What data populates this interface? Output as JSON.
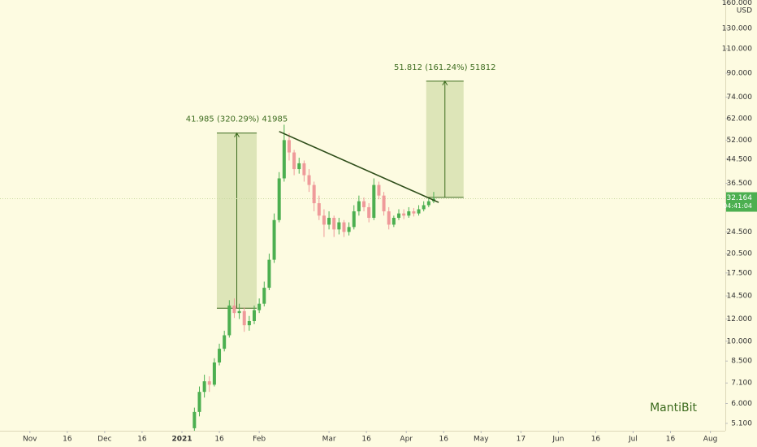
{
  "chart_data": {
    "type": "candlestick",
    "currency": "USD",
    "watermark": "MantiBit",
    "log_scale": true,
    "up_color": "#4caf50",
    "down_color": "#ef9a9a",
    "xlim": [
      "2020-10-20",
      "2021-08-07"
    ],
    "ylim": [
      4.8,
      164
    ],
    "xticks": [
      {
        "value": "2020-11-01",
        "label": "Nov"
      },
      {
        "value": "2020-11-16",
        "label": "16"
      },
      {
        "value": "2020-12-01",
        "label": "Dec"
      },
      {
        "value": "2020-12-16",
        "label": "16"
      },
      {
        "value": "2021-01-01",
        "label": "2021"
      },
      {
        "value": "2021-01-16",
        "label": "16"
      },
      {
        "value": "2021-02-01",
        "label": "Feb"
      },
      {
        "value": "2021-03-01",
        "label": "Mar"
      },
      {
        "value": "2021-03-16",
        "label": "16"
      },
      {
        "value": "2021-04-01",
        "label": "Apr"
      },
      {
        "value": "2021-04-16",
        "label": "16"
      },
      {
        "value": "2021-05-01",
        "label": "May"
      },
      {
        "value": "2021-05-17",
        "label": "17"
      },
      {
        "value": "2021-06-01",
        "label": "Jun"
      },
      {
        "value": "2021-06-16",
        "label": "16"
      },
      {
        "value": "2021-07-01",
        "label": "Jul"
      },
      {
        "value": "2021-07-16",
        "label": "16"
      },
      {
        "value": "2021-08-01",
        "label": "Aug"
      }
    ],
    "yticks": [
      {
        "value": 160,
        "label": "160.000"
      },
      {
        "value": 130,
        "label": "130.000"
      },
      {
        "value": 110,
        "label": "110.000"
      },
      {
        "value": 90,
        "label": "90.000"
      },
      {
        "value": 74,
        "label": "74.000"
      },
      {
        "value": 62,
        "label": "62.000"
      },
      {
        "value": 52,
        "label": "52.000"
      },
      {
        "value": 44.5,
        "label": "44.500"
      },
      {
        "value": 36.5,
        "label": "36.500"
      },
      {
        "value": 24.5,
        "label": "24.500"
      },
      {
        "value": 20.5,
        "label": "20.500"
      },
      {
        "value": 17.5,
        "label": "17.500"
      },
      {
        "value": 14.5,
        "label": "14.500"
      },
      {
        "value": 12,
        "label": "12.000"
      },
      {
        "value": 10,
        "label": "10.000"
      },
      {
        "value": 8.5,
        "label": "8.500"
      },
      {
        "value": 7.1,
        "label": "7.100"
      },
      {
        "value": 6,
        "label": "6.000"
      },
      {
        "value": 5.1,
        "label": "5.100"
      }
    ],
    "last_price": {
      "value": 32.164,
      "label": "32.164"
    },
    "countdown": "04:41:04",
    "x": [
      "2021-01-06",
      "2021-01-08",
      "2021-01-10",
      "2021-01-12",
      "2021-01-14",
      "2021-01-16",
      "2021-01-18",
      "2021-01-20",
      "2021-01-22",
      "2021-01-24",
      "2021-01-26",
      "2021-01-28",
      "2021-01-30",
      "2021-02-01",
      "2021-02-03",
      "2021-02-05",
      "2021-02-07",
      "2021-02-09",
      "2021-02-11",
      "2021-02-13",
      "2021-02-15",
      "2021-02-17",
      "2021-02-19",
      "2021-02-21",
      "2021-02-23",
      "2021-02-25",
      "2021-02-27",
      "2021-03-01",
      "2021-03-03",
      "2021-03-05",
      "2021-03-07",
      "2021-03-09",
      "2021-03-11",
      "2021-03-13",
      "2021-03-15",
      "2021-03-17",
      "2021-03-19",
      "2021-03-21",
      "2021-03-23",
      "2021-03-25",
      "2021-03-27",
      "2021-03-29",
      "2021-03-31",
      "2021-04-02",
      "2021-04-04",
      "2021-04-06",
      "2021-04-08",
      "2021-04-10",
      "2021-04-12"
    ],
    "open": [
      4.9,
      5.6,
      6.6,
      7.2,
      7.0,
      8.4,
      9.4,
      10.5,
      13.4,
      12.6,
      12.8,
      11.4,
      11.8,
      12.9,
      13.6,
      15.5,
      19.5,
      27,
      38,
      52,
      47,
      41,
      43,
      39,
      36,
      31,
      28,
      26,
      27.5,
      25,
      26.5,
      24.5,
      25.5,
      29,
      31.5,
      30,
      27.5,
      36,
      33,
      29,
      26,
      27.5,
      28.5,
      28,
      29,
      28.5,
      29.5,
      30.5,
      31.5
    ],
    "high": [
      5.8,
      6.9,
      7.6,
      7.5,
      8.7,
      9.8,
      10.9,
      14.0,
      14.2,
      13.6,
      13.2,
      12.3,
      13.4,
      14.2,
      16.3,
      20.5,
      28.5,
      40,
      59,
      55,
      48,
      45,
      44,
      41,
      37,
      33,
      29.5,
      29,
      28,
      27.5,
      27,
      26.5,
      30.5,
      33,
      32.5,
      31,
      38,
      37,
      34,
      30,
      28,
      29.5,
      29.5,
      30,
      29.8,
      30.5,
      31.5,
      32.5,
      34
    ],
    "low": [
      4.8,
      5.4,
      6.3,
      6.6,
      6.9,
      8.2,
      9.2,
      10.3,
      12.1,
      12.0,
      10.8,
      10.9,
      11.5,
      12.6,
      13.3,
      15.2,
      19.0,
      26.5,
      37,
      44,
      39,
      39.5,
      37,
      34,
      29,
      27,
      23.5,
      25,
      23.5,
      24,
      23.5,
      23.8,
      25,
      28,
      29,
      26.5,
      27,
      32,
      28,
      25,
      25.5,
      27,
      27.2,
      27.5,
      27.8,
      28,
      29,
      30,
      31
    ],
    "close": [
      5.6,
      6.6,
      7.2,
      7.0,
      8.4,
      9.4,
      10.5,
      13.4,
      12.6,
      12.8,
      11.4,
      11.8,
      12.9,
      13.6,
      15.5,
      19.5,
      27,
      38,
      52,
      47,
      41,
      43,
      39,
      36,
      31,
      28,
      26,
      27.5,
      25,
      26.5,
      24.5,
      25.5,
      29,
      31.5,
      30,
      27.5,
      36,
      33,
      29,
      26,
      27.5,
      28.5,
      28,
      29,
      28.5,
      29.5,
      30.5,
      31.5,
      32.164
    ],
    "trendline": {
      "from": {
        "x": "2021-02-09",
        "y": 55.8
      },
      "to": {
        "x": "2021-04-14",
        "y": 31.2
      }
    },
    "measures": [
      {
        "start": "2021-01-15",
        "end": "2021-01-31",
        "low": 13.1,
        "high": 55.1,
        "label": "41.985 (320.29%) 41985"
      },
      {
        "start": "2021-04-09",
        "end": "2021-04-24",
        "low": 32.5,
        "high": 84.3,
        "label": "51.812 (161.24%) 51812"
      }
    ]
  }
}
